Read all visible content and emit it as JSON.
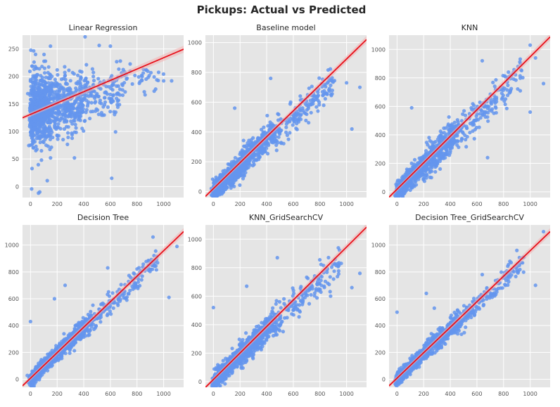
{
  "figure": {
    "title": "Pickups: Actual vs Predicted"
  },
  "style": {
    "panel_background": "#e5e5e5",
    "grid_color": "#ffffff",
    "point_color": "#6495ed",
    "line_color": "#e8101a",
    "ci_color": "#f2b3b3"
  },
  "chart_data": [
    {
      "type": "scatter",
      "title": "Linear Regression",
      "xlabel": "",
      "ylabel": "",
      "xlim": [
        -60,
        1150
      ],
      "ylim": [
        -20,
        275
      ],
      "xticks": [
        0,
        200,
        400,
        600,
        800,
        1000
      ],
      "yticks": [
        0,
        50,
        100,
        150,
        200,
        250
      ],
      "grid": true,
      "regression_line": {
        "intercept": 131,
        "slope": 0.103
      },
      "point_cloud": [
        {
          "x_range": [
            0,
            150
          ],
          "center_y": 140,
          "y_spread": 65,
          "count": 600
        },
        {
          "x_range": [
            150,
            400
          ],
          "center_y": 150,
          "y_spread": 50,
          "count": 350
        },
        {
          "x_range": [
            400,
            700
          ],
          "center_y": 170,
          "y_spread": 40,
          "count": 150
        },
        {
          "x_range": [
            700,
            1000
          ],
          "center_y": 195,
          "y_spread": 20,
          "count": 35
        }
      ],
      "points": [
        [
          150,
          255
        ],
        [
          410,
          272
        ],
        [
          600,
          255
        ],
        [
          640,
          135
        ],
        [
          1060,
          192
        ],
        [
          610,
          15
        ],
        [
          60,
          -12
        ],
        [
          330,
          52
        ],
        [
          1000,
          192
        ]
      ]
    },
    {
      "type": "scatter",
      "title": "Baseline model",
      "xlabel": "",
      "ylabel": "",
      "xlim": [
        -60,
        1150
      ],
      "ylim": [
        -40,
        1050
      ],
      "xticks": [
        0,
        200,
        400,
        600,
        800,
        1000
      ],
      "yticks": [
        0,
        200,
        400,
        600,
        800,
        1000
      ],
      "grid": true,
      "regression_line": {
        "intercept": 20,
        "slope": 0.87
      },
      "point_cloud": [
        {
          "x_range": [
            0,
            200
          ],
          "slope": 0.85,
          "y_spread": 55,
          "count": 550
        },
        {
          "x_range": [
            200,
            450
          ],
          "slope": 0.9,
          "y_spread": 75,
          "count": 400
        },
        {
          "x_range": [
            450,
            900
          ],
          "slope": 0.82,
          "y_spread": 85,
          "count": 180
        }
      ],
      "points": [
        [
          1000,
          730
        ],
        [
          1040,
          420
        ],
        [
          1100,
          700
        ],
        [
          900,
          740
        ],
        [
          430,
          760
        ],
        [
          160,
          560
        ],
        [
          580,
          600
        ]
      ]
    },
    {
      "type": "scatter",
      "title": "KNN",
      "xlabel": "",
      "ylabel": "",
      "xlim": [
        -60,
        1150
      ],
      "ylim": [
        -40,
        1100
      ],
      "xticks": [
        0,
        200,
        400,
        600,
        800,
        1000
      ],
      "yticks": [
        0,
        200,
        400,
        600,
        800,
        1000
      ],
      "grid": true,
      "regression_line": {
        "intercept": 18,
        "slope": 0.93
      },
      "point_cloud": [
        {
          "x_range": [
            0,
            200
          ],
          "slope": 0.95,
          "y_spread": 55,
          "count": 550
        },
        {
          "x_range": [
            200,
            450
          ],
          "slope": 0.93,
          "y_spread": 80,
          "count": 400
        },
        {
          "x_range": [
            450,
            950
          ],
          "slope": 0.9,
          "y_spread": 100,
          "count": 180
        }
      ],
      "points": [
        [
          1000,
          1030
        ],
        [
          1040,
          940
        ],
        [
          1100,
          760
        ],
        [
          1000,
          560
        ],
        [
          580,
          580
        ],
        [
          680,
          240
        ],
        [
          640,
          920
        ],
        [
          110,
          590
        ]
      ]
    },
    {
      "type": "scatter",
      "title": "Decision Tree",
      "xlabel": "",
      "ylabel": "",
      "xlim": [
        -60,
        1150
      ],
      "ylim": [
        -60,
        1150
      ],
      "xticks": [
        0,
        200,
        400,
        600,
        800,
        1000
      ],
      "yticks": [
        0,
        200,
        400,
        600,
        800,
        1000
      ],
      "grid": true,
      "regression_line": {
        "intercept": 8,
        "slope": 0.95
      },
      "point_cloud": [
        {
          "x_range": [
            0,
            200
          ],
          "slope": 0.98,
          "y_spread": 40,
          "count": 550
        },
        {
          "x_range": [
            200,
            450
          ],
          "slope": 0.96,
          "y_spread": 55,
          "count": 400
        },
        {
          "x_range": [
            450,
            950
          ],
          "slope": 0.93,
          "y_spread": 75,
          "count": 180
        }
      ],
      "points": [
        [
          920,
          1060
        ],
        [
          1100,
          990
        ],
        [
          1040,
          610
        ],
        [
          180,
          600
        ],
        [
          260,
          700
        ],
        [
          0,
          430
        ],
        [
          580,
          830
        ]
      ]
    },
    {
      "type": "scatter",
      "title": "KNN_GridSearchCV",
      "xlabel": "",
      "ylabel": "",
      "xlim": [
        -60,
        1150
      ],
      "ylim": [
        -40,
        1100
      ],
      "xticks": [
        0,
        200,
        400,
        600,
        800,
        1000
      ],
      "yticks": [
        0,
        200,
        400,
        600,
        800,
        1000
      ],
      "grid": true,
      "regression_line": {
        "intercept": 15,
        "slope": 0.93
      },
      "point_cloud": [
        {
          "x_range": [
            0,
            200
          ],
          "slope": 0.95,
          "y_spread": 50,
          "count": 550
        },
        {
          "x_range": [
            200,
            450
          ],
          "slope": 0.92,
          "y_spread": 70,
          "count": 400
        },
        {
          "x_range": [
            450,
            950
          ],
          "slope": 0.9,
          "y_spread": 90,
          "count": 180
        }
      ],
      "points": [
        [
          0,
          520
        ],
        [
          1040,
          660
        ],
        [
          1100,
          760
        ],
        [
          960,
          830
        ],
        [
          250,
          670
        ],
        [
          880,
          600
        ],
        [
          480,
          870
        ]
      ]
    },
    {
      "type": "scatter",
      "title": "Decision Tree_GridSearchCV",
      "xlabel": "",
      "ylabel": "",
      "xlim": [
        -60,
        1150
      ],
      "ylim": [
        -60,
        1150
      ],
      "xticks": [
        0,
        200,
        400,
        600,
        800,
        1000
      ],
      "yticks": [
        0,
        200,
        400,
        600,
        800,
        1000
      ],
      "grid": true,
      "regression_line": {
        "intercept": 8,
        "slope": 0.95
      },
      "point_cloud": [
        {
          "x_range": [
            0,
            200
          ],
          "slope": 0.97,
          "y_spread": 40,
          "count": 550
        },
        {
          "x_range": [
            200,
            450
          ],
          "slope": 0.95,
          "y_spread": 55,
          "count": 400
        },
        {
          "x_range": [
            450,
            950
          ],
          "slope": 0.93,
          "y_spread": 70,
          "count": 180
        }
      ],
      "points": [
        [
          1100,
          1100
        ],
        [
          1040,
          700
        ],
        [
          0,
          500
        ],
        [
          220,
          640
        ],
        [
          640,
          780
        ],
        [
          900,
          960
        ],
        [
          280,
          530
        ]
      ]
    }
  ]
}
